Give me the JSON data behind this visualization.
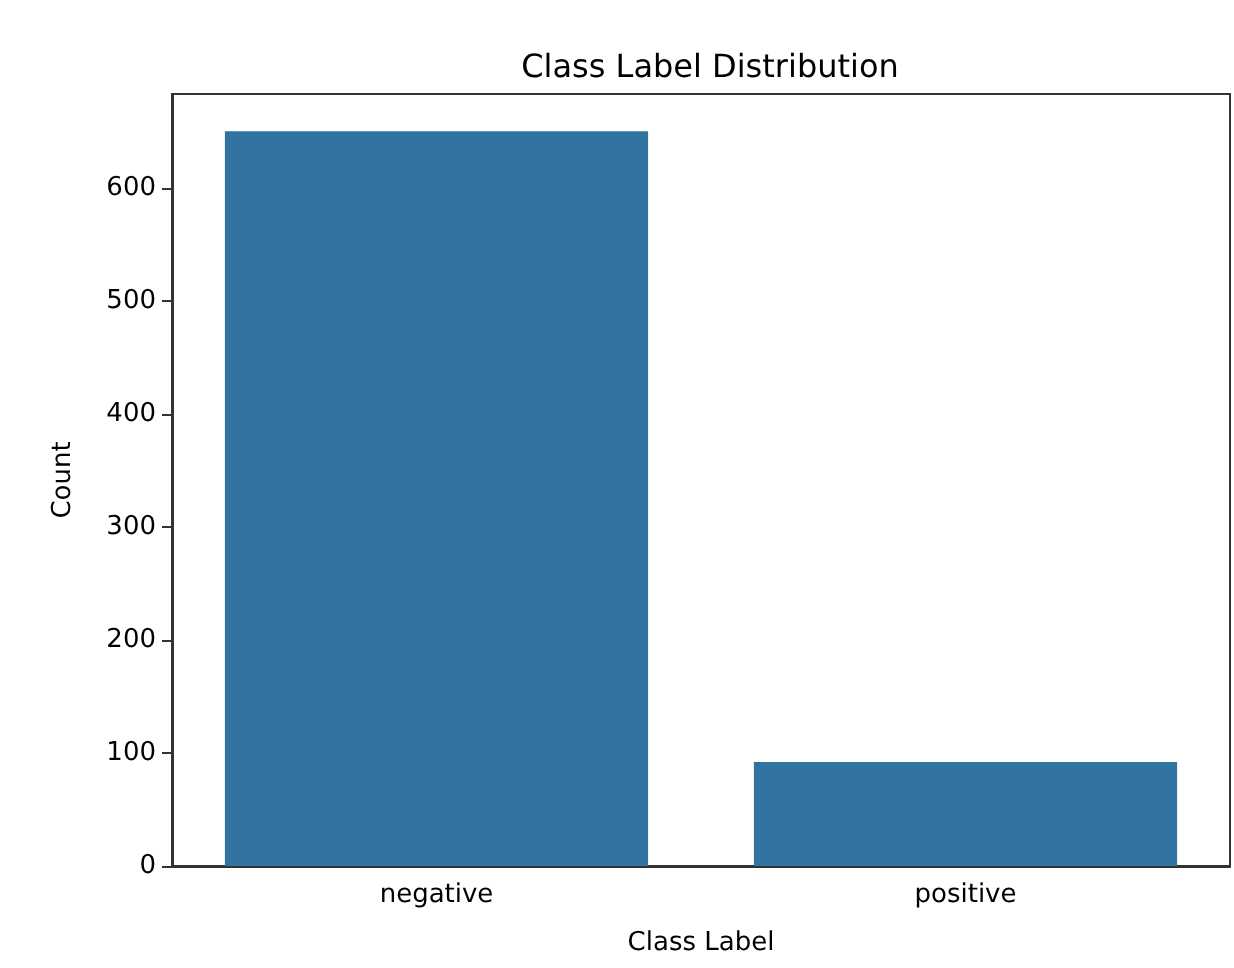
{
  "chart_data": {
    "type": "bar",
    "title": "Class Label Distribution",
    "xlabel": "Class Label",
    "ylabel": "Count",
    "categories": [
      "negative",
      "positive"
    ],
    "values": [
      650,
      92
    ],
    "color": "#3274a1",
    "ylim": [
      0,
      683
    ],
    "yticks": [
      0,
      100,
      200,
      300,
      400,
      500,
      600
    ],
    "grid": false
  }
}
